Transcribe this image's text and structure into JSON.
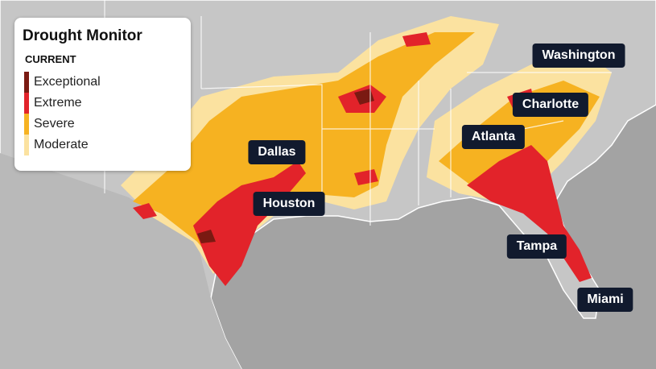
{
  "legend": {
    "title": "Drought Monitor",
    "subtitle": "CURRENT",
    "items": [
      {
        "label": "Exceptional",
        "color": "#7a1a12"
      },
      {
        "label": "Extreme",
        "color": "#e2232a"
      },
      {
        "label": "Severe",
        "color": "#f6b221"
      },
      {
        "label": "Moderate",
        "color": "#fbe2a0"
      }
    ]
  },
  "cities": [
    "Washington",
    "Charlotte",
    "Atlanta",
    "Dallas",
    "Houston",
    "Tampa",
    "Miami"
  ]
}
